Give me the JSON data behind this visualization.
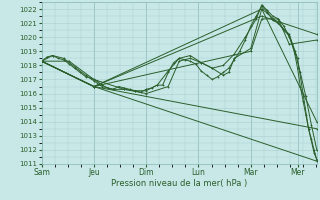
{
  "xlabel": "Pression niveau de la mer( hPa )",
  "bg_color": "#c8e8e8",
  "grid_color": "#aacece",
  "line_color": "#2a5e2a",
  "ylim": [
    1011,
    1022.5
  ],
  "yticks": [
    1011,
    1012,
    1013,
    1014,
    1015,
    1016,
    1017,
    1018,
    1019,
    1020,
    1021,
    1022
  ],
  "day_labels": [
    "Sam",
    "Jeu",
    "Dim",
    "Lun",
    "Mar",
    "Mer"
  ],
  "day_positions": [
    0.0,
    0.19,
    0.38,
    0.57,
    0.76,
    0.93
  ],
  "xlim": [
    0.0,
    1.0
  ],
  "lines": [
    [
      0.0,
      1018.3,
      0.02,
      1018.6,
      0.04,
      1018.7,
      0.06,
      1018.5,
      0.08,
      1018.4,
      0.1,
      1018.1,
      0.12,
      1017.8,
      0.14,
      1017.5,
      0.16,
      1017.2,
      0.18,
      1017.1,
      0.2,
      1016.9,
      0.22,
      1016.6,
      0.24,
      1016.4,
      0.26,
      1016.3,
      0.28,
      1016.5,
      0.3,
      1016.4,
      0.32,
      1016.3,
      0.34,
      1016.2,
      0.36,
      1016.1,
      0.38,
      1016.3,
      0.4,
      1016.4,
      0.42,
      1016.6,
      0.44,
      1016.6,
      0.46,
      1017.5,
      0.48,
      1018.2,
      0.5,
      1018.5,
      0.52,
      1018.4,
      0.54,
      1018.3,
      0.56,
      1018.1,
      0.58,
      1017.6,
      0.6,
      1017.3,
      0.62,
      1017.0,
      0.64,
      1017.2,
      0.66,
      1017.5,
      0.68,
      1017.8,
      0.7,
      1018.4,
      0.72,
      1019.0,
      0.74,
      1019.8,
      0.76,
      1020.8,
      0.78,
      1021.5,
      0.8,
      1022.2,
      0.82,
      1021.8,
      0.84,
      1021.2,
      0.86,
      1021.0,
      0.88,
      1020.5,
      0.9,
      1020.1,
      0.91,
      1019.5,
      0.92,
      1018.8,
      0.93,
      1017.8,
      0.94,
      1016.5,
      0.95,
      1015.5,
      0.96,
      1014.5,
      0.97,
      1013.5,
      0.98,
      1012.8,
      0.99,
      1012.0,
      1.0,
      1011.3
    ],
    [
      0.0,
      1018.3,
      0.19,
      1016.5,
      1.0,
      1011.2
    ],
    [
      0.0,
      1018.3,
      0.19,
      1016.5,
      1.0,
      1013.5
    ],
    [
      0.0,
      1018.3,
      0.19,
      1016.5,
      0.8,
      1022.0,
      1.0,
      1014.0
    ],
    [
      0.0,
      1018.3,
      0.19,
      1016.5,
      0.8,
      1021.5,
      1.0,
      1020.2
    ],
    [
      0.0,
      1018.3,
      0.19,
      1016.5,
      0.76,
      1019.0,
      0.8,
      1021.3,
      0.86,
      1021.3,
      0.9,
      1019.5,
      1.0,
      1019.8
    ],
    [
      0.0,
      1018.3,
      0.04,
      1018.7,
      0.08,
      1018.5,
      0.12,
      1017.9,
      0.16,
      1017.3,
      0.19,
      1016.9,
      0.22,
      1016.5,
      0.26,
      1016.3,
      0.3,
      1016.3,
      0.34,
      1016.2,
      0.38,
      1016.2,
      0.42,
      1016.6,
      0.46,
      1017.6,
      0.5,
      1018.5,
      0.54,
      1018.7,
      0.58,
      1018.2,
      0.62,
      1017.8,
      0.66,
      1018.0,
      0.7,
      1018.8,
      0.74,
      1020.0,
      0.78,
      1021.3,
      0.8,
      1022.3,
      0.82,
      1021.9,
      0.84,
      1021.5,
      0.86,
      1021.3,
      0.88,
      1020.8,
      0.9,
      1020.0,
      0.92,
      1019.0,
      0.94,
      1017.5,
      0.96,
      1015.8,
      0.98,
      1013.8,
      1.0,
      1012.0
    ],
    [
      0.0,
      1018.3,
      0.1,
      1018.3,
      0.19,
      1017.0,
      0.3,
      1016.3,
      0.38,
      1016.0,
      0.46,
      1016.5,
      0.5,
      1018.3,
      0.54,
      1018.5,
      0.58,
      1018.2,
      0.62,
      1017.8,
      0.66,
      1017.3,
      0.68,
      1017.5,
      0.7,
      1018.5,
      0.76,
      1019.2,
      0.8,
      1022.0,
      0.82,
      1021.7,
      0.86,
      1021.0,
      0.9,
      1020.2,
      0.93,
      1018.5,
      0.95,
      1016.0,
      0.97,
      1013.5,
      0.99,
      1011.8,
      1.0,
      1011.3
    ]
  ]
}
